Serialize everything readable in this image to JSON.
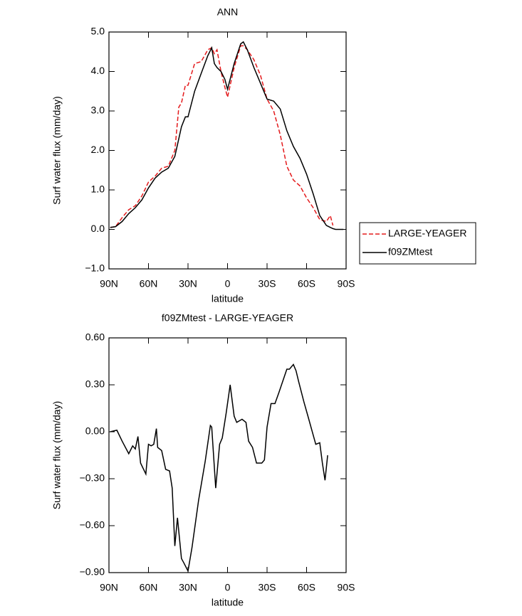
{
  "chart_data": [
    {
      "type": "line",
      "title": "ANN",
      "x_label": "latitude",
      "y_label": "Surf water flux (mm/day)",
      "x": [
        89,
        85,
        80,
        75,
        70,
        65,
        60,
        55,
        50,
        45,
        40,
        37,
        35,
        32,
        30,
        25,
        20,
        15,
        12,
        10,
        8,
        5,
        2,
        0,
        -5,
        -10,
        -12,
        -15,
        -20,
        -25,
        -30,
        -35,
        -40,
        -45,
        -50,
        -55,
        -60,
        -65,
        -70,
        -75,
        -78,
        -80,
        -82,
        -85,
        -88
      ],
      "series": [
        {
          "name": "LARGE-YEAGER",
          "color": "#e41a1c",
          "dash": true,
          "values": [
            0.05,
            0.07,
            0.3,
            0.5,
            0.6,
            0.85,
            1.2,
            1.35,
            1.55,
            1.6,
            2.0,
            3.1,
            3.2,
            3.65,
            3.65,
            4.2,
            4.25,
            4.55,
            4.6,
            4.45,
            4.55,
            4.0,
            3.6,
            3.35,
            4.1,
            4.65,
            4.65,
            4.55,
            4.3,
            3.9,
            3.3,
            3.0,
            2.4,
            1.6,
            1.25,
            1.1,
            0.8,
            0.55,
            0.25,
            0.2,
            0.35,
            0.1,
            null,
            null,
            null
          ]
        },
        {
          "name": "f09ZMtest",
          "color": "#000000",
          "dash": false,
          "values": [
            0.05,
            0.07,
            0.2,
            0.4,
            0.55,
            0.75,
            1.05,
            1.3,
            1.45,
            1.55,
            1.85,
            2.3,
            2.6,
            2.85,
            2.85,
            3.5,
            3.95,
            4.4,
            4.6,
            4.2,
            4.1,
            4.0,
            3.8,
            3.55,
            4.2,
            4.7,
            4.75,
            4.55,
            4.1,
            3.7,
            3.3,
            3.25,
            3.05,
            2.5,
            2.1,
            1.8,
            1.4,
            0.9,
            0.35,
            0.1,
            0.05,
            0.02,
            0.0,
            0.0,
            0.0
          ]
        }
      ],
      "xlim": [
        90,
        -90
      ],
      "xticks": [
        {
          "value": 90,
          "label": "90N"
        },
        {
          "value": 60,
          "label": "60N"
        },
        {
          "value": 30,
          "label": "30N"
        },
        0,
        {
          "value": -30,
          "label": "30S"
        },
        {
          "value": -60,
          "label": "60S"
        },
        {
          "value": -90,
          "label": "90S"
        }
      ],
      "ylim": [
        -1,
        5
      ],
      "yticks": [
        {
          "value": -1,
          "label": "−1.0"
        },
        {
          "value": 0,
          "label": "0.0"
        },
        {
          "value": 1,
          "label": "1.0"
        },
        {
          "value": 2,
          "label": "2.0"
        },
        {
          "value": 3,
          "label": "3.0"
        },
        {
          "value": 4,
          "label": "4.0"
        },
        {
          "value": 5,
          "label": "5.0"
        }
      ],
      "legend": "right"
    },
    {
      "type": "line",
      "title": "f09ZMtest - LARGE-YEAGER",
      "x_label": "latitude",
      "y_label": "Surf water flux (mm/day)",
      "x": [
        89,
        84,
        80,
        75,
        72,
        70,
        68,
        66,
        62,
        60,
        58,
        56,
        54,
        53,
        50,
        47,
        44,
        42,
        40,
        38,
        35,
        33,
        30,
        27,
        22,
        17,
        13,
        12,
        9,
        6,
        4,
        1,
        -2,
        -5,
        -7,
        -11,
        -14,
        -16,
        -19,
        -22,
        -26,
        -28,
        -30,
        -33,
        -36,
        -39,
        -45,
        -47,
        -50,
        -52,
        -54,
        -58,
        -61,
        -64,
        -67,
        -70,
        -72,
        -74,
        -76
      ],
      "values": [
        0.0,
        0.01,
        -0.06,
        -0.14,
        -0.09,
        -0.11,
        -0.03,
        -0.2,
        -0.27,
        -0.08,
        -0.09,
        -0.08,
        0.02,
        -0.1,
        -0.12,
        -0.24,
        -0.25,
        -0.36,
        -0.73,
        -0.55,
        -0.81,
        -0.84,
        -0.89,
        -0.74,
        -0.44,
        -0.19,
        0.04,
        0.03,
        -0.36,
        -0.08,
        -0.04,
        0.12,
        0.3,
        0.1,
        0.06,
        0.08,
        0.06,
        -0.06,
        -0.1,
        -0.2,
        -0.2,
        -0.18,
        0.03,
        0.18,
        0.18,
        0.25,
        0.4,
        0.4,
        0.43,
        0.39,
        0.32,
        0.19,
        0.1,
        0.01,
        -0.08,
        -0.07,
        -0.2,
        -0.31,
        -0.15
      ],
      "color": "#000000",
      "xlim": [
        90,
        -90
      ],
      "xticks": [
        {
          "value": 90,
          "label": "90N"
        },
        {
          "value": 60,
          "label": "60N"
        },
        {
          "value": 30,
          "label": "30N"
        },
        0,
        {
          "value": -30,
          "label": "30S"
        },
        {
          "value": -60,
          "label": "60S"
        },
        {
          "value": -90,
          "label": "90S"
        }
      ],
      "ylim": [
        -0.9,
        0.6
      ],
      "yticks": [
        {
          "value": -0.9,
          "label": "−0.90"
        },
        {
          "value": -0.6,
          "label": "−0.60"
        },
        {
          "value": -0.3,
          "label": "−0.30"
        },
        {
          "value": 0,
          "label": "0.00"
        },
        {
          "value": 0.3,
          "label": "0.30"
        },
        {
          "value": 0.6,
          "label": "0.60"
        }
      ]
    }
  ]
}
